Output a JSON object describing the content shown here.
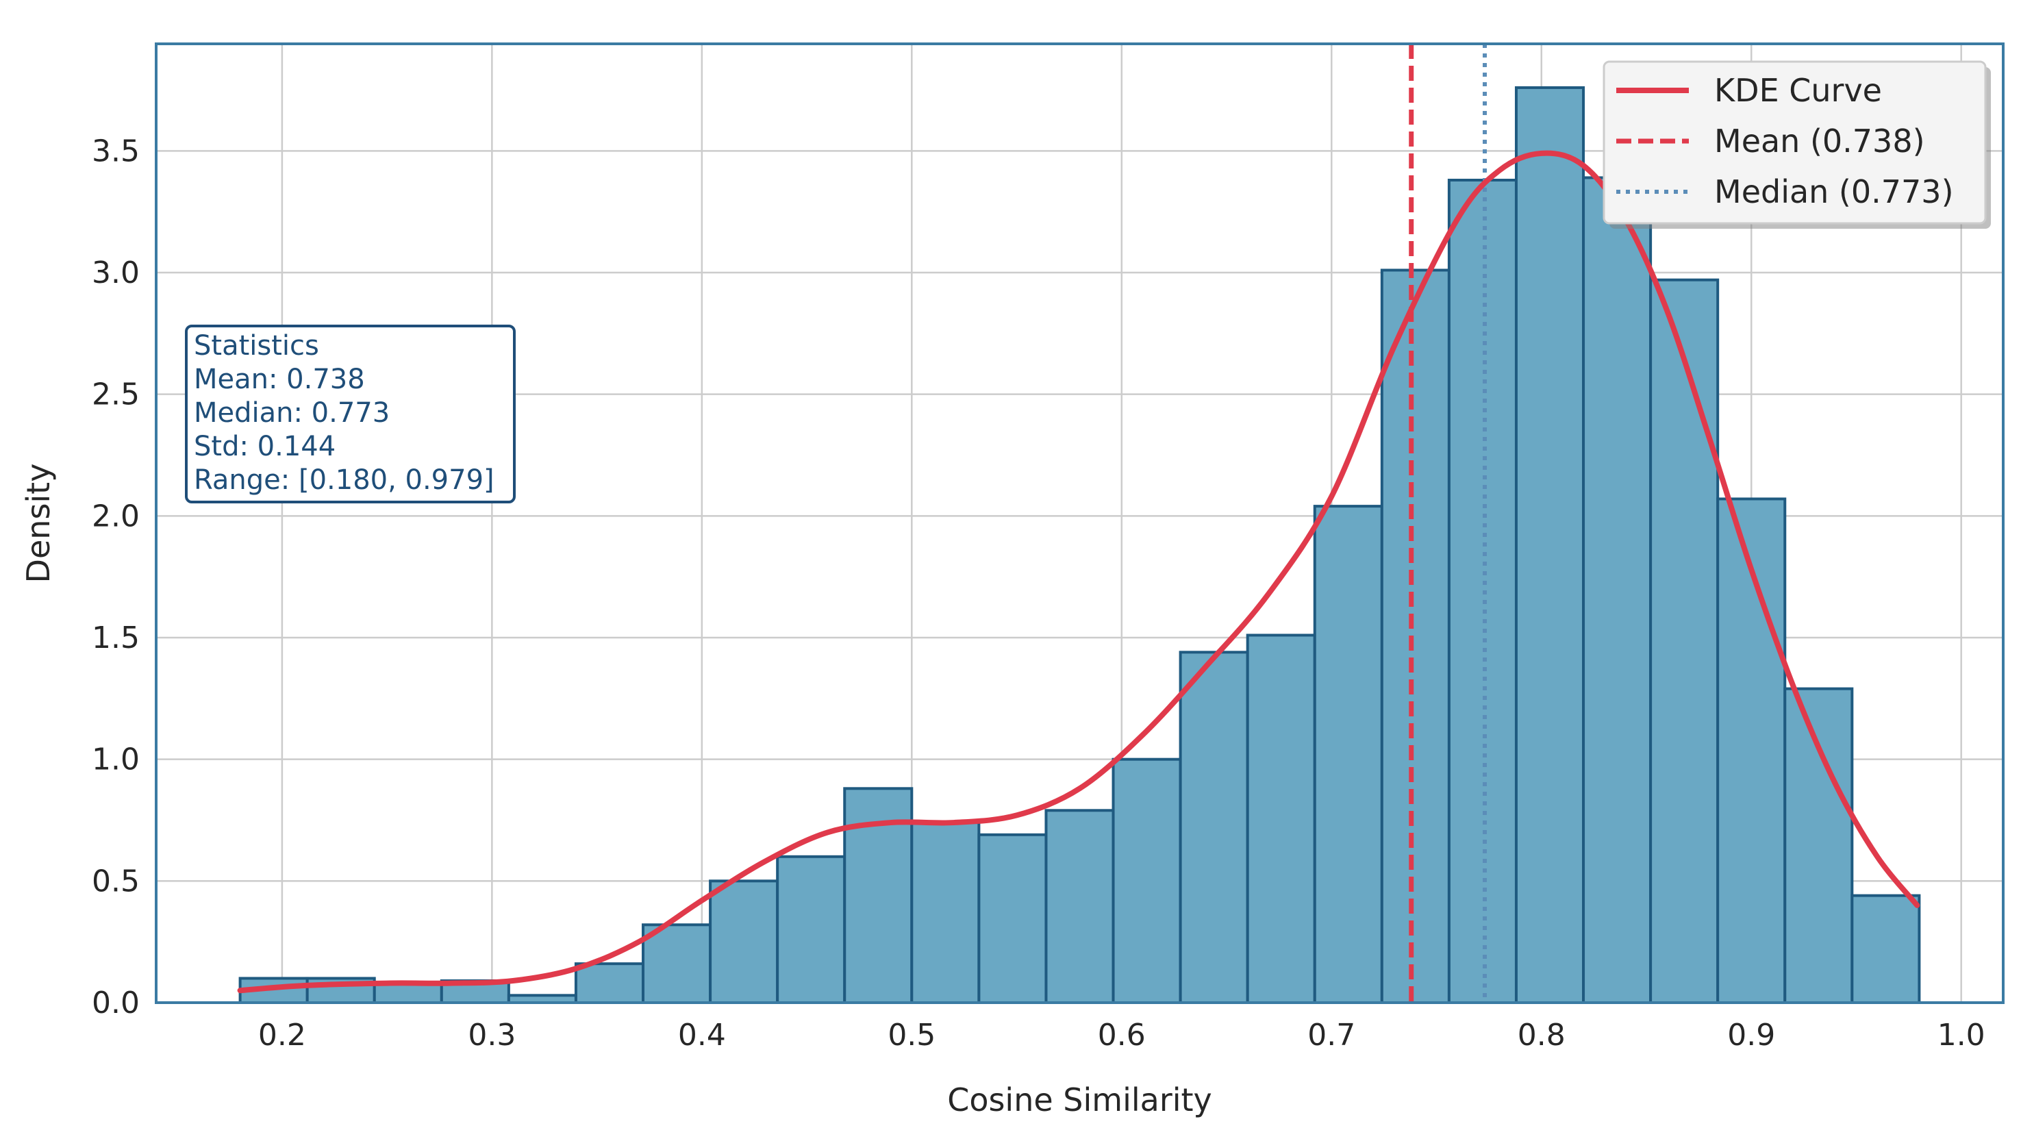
{
  "chart_data": {
    "type": "bar",
    "xlabel": "Cosine Similarity",
    "ylabel": "Density",
    "xlim": [
      0.14,
      1.02
    ],
    "ylim": [
      0.0,
      3.94
    ],
    "x_ticks": [
      "0.2",
      "0.3",
      "0.4",
      "0.5",
      "0.6",
      "0.7",
      "0.8",
      "0.9",
      "1.0"
    ],
    "y_ticks": [
      "0.0",
      "0.5",
      "1.0",
      "1.5",
      "2.0",
      "2.5",
      "3.0",
      "3.5"
    ],
    "grid": true,
    "histogram": {
      "bin_start": 0.18,
      "bin_width": 0.032,
      "values": [
        0.1,
        0.1,
        0.08,
        0.09,
        0.03,
        0.16,
        0.32,
        0.5,
        0.6,
        0.88,
        0.74,
        0.69,
        0.79,
        1.0,
        1.44,
        1.51,
        2.04,
        3.01,
        3.38,
        3.76,
        3.39,
        2.97,
        2.07,
        1.29,
        0.44
      ]
    },
    "kde": {
      "name": "KDE Curve",
      "x": [
        0.18,
        0.21,
        0.25,
        0.28,
        0.31,
        0.34,
        0.37,
        0.4,
        0.43,
        0.46,
        0.49,
        0.52,
        0.55,
        0.58,
        0.61,
        0.64,
        0.67,
        0.7,
        0.73,
        0.76,
        0.78,
        0.8,
        0.82,
        0.84,
        0.86,
        0.88,
        0.9,
        0.92,
        0.94,
        0.96,
        0.979
      ],
      "y": [
        0.05,
        0.07,
        0.08,
        0.08,
        0.09,
        0.14,
        0.25,
        0.42,
        0.58,
        0.7,
        0.74,
        0.74,
        0.77,
        0.88,
        1.1,
        1.38,
        1.68,
        2.08,
        2.7,
        3.22,
        3.42,
        3.49,
        3.44,
        3.22,
        2.84,
        2.32,
        1.78,
        1.3,
        0.9,
        0.6,
        0.4
      ]
    },
    "mean": {
      "label": "Mean (0.738)",
      "value": 0.738
    },
    "median": {
      "label": "Median (0.773)",
      "value": 0.773
    },
    "legend": {
      "placement": "top-right",
      "entries": [
        "KDE Curve",
        "Mean (0.738)",
        "Median (0.773)"
      ]
    },
    "stats_box": {
      "lines": [
        "Statistics",
        "Mean: 0.738",
        "Median: 0.773",
        "Std: 0.144",
        "Range: [0.180, 0.979]"
      ]
    },
    "colors": {
      "bar_fill": "#6aa8c4",
      "bar_edge": "#1f5a80",
      "kde": "#e03a4b",
      "mean": "#e03a4b",
      "median": "#5b8db8",
      "grid": "#cccccc",
      "axes": "#3b7ba3",
      "stats_edge": "#1f4e79"
    }
  }
}
